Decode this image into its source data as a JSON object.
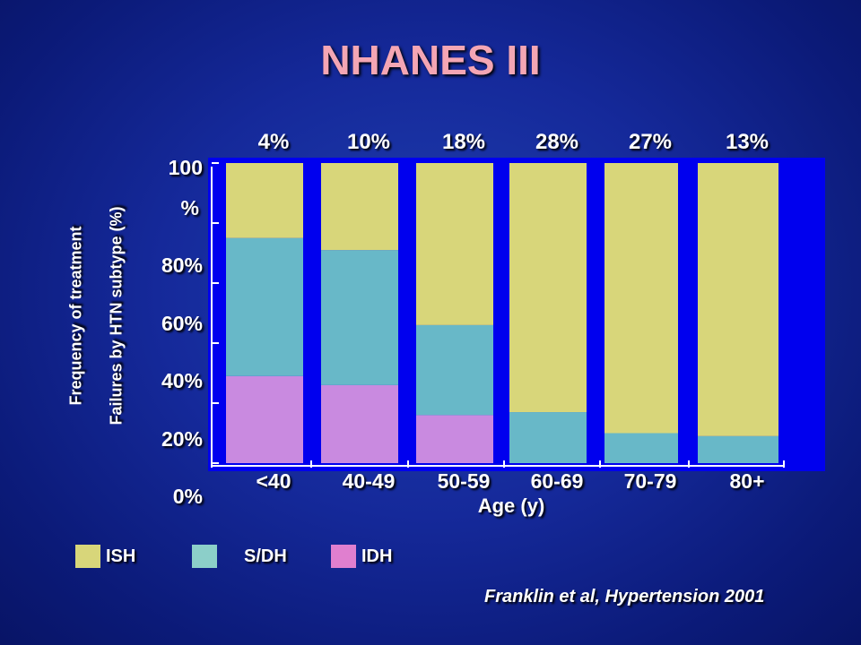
{
  "slide": {
    "title": "NHANES III",
    "citation": "Franklin et al, Hypertension 2001"
  },
  "chart_data": {
    "type": "bar",
    "stacked": true,
    "categories": [
      "<40",
      "40-49",
      "50-59",
      "60-69",
      "70-79",
      "80+"
    ],
    "top_labels": [
      "4%",
      "10%",
      "18%",
      "28%",
      "27%",
      "13%"
    ],
    "series": [
      {
        "name": "IDH",
        "color": "#c98ae0",
        "values": [
          29,
          26,
          16,
          0,
          0,
          0
        ]
      },
      {
        "name": "S/DH",
        "color": "#68b8c8",
        "values": [
          46,
          45,
          30,
          17,
          10,
          9
        ]
      },
      {
        "name": "ISH",
        "color": "#d8d67a",
        "values": [
          25,
          29,
          54,
          83,
          90,
          91
        ]
      }
    ],
    "ylabel_lines": [
      "Frequency of treatment",
      "Failures by HTN subtype (%)"
    ],
    "xlabel": "Age (y)",
    "y_tick_labels": [
      "0%",
      "20%",
      "40%",
      "60%",
      "80%",
      "100",
      "%"
    ],
    "ylim": [
      0,
      100
    ],
    "plot_background": "#0000ee"
  },
  "legend": [
    {
      "label": "ISH",
      "color": "#d8d67a"
    },
    {
      "label": "S/DH",
      "color": "#8ccfc9"
    },
    {
      "label": "IDH",
      "color": "#e07fcf"
    }
  ]
}
